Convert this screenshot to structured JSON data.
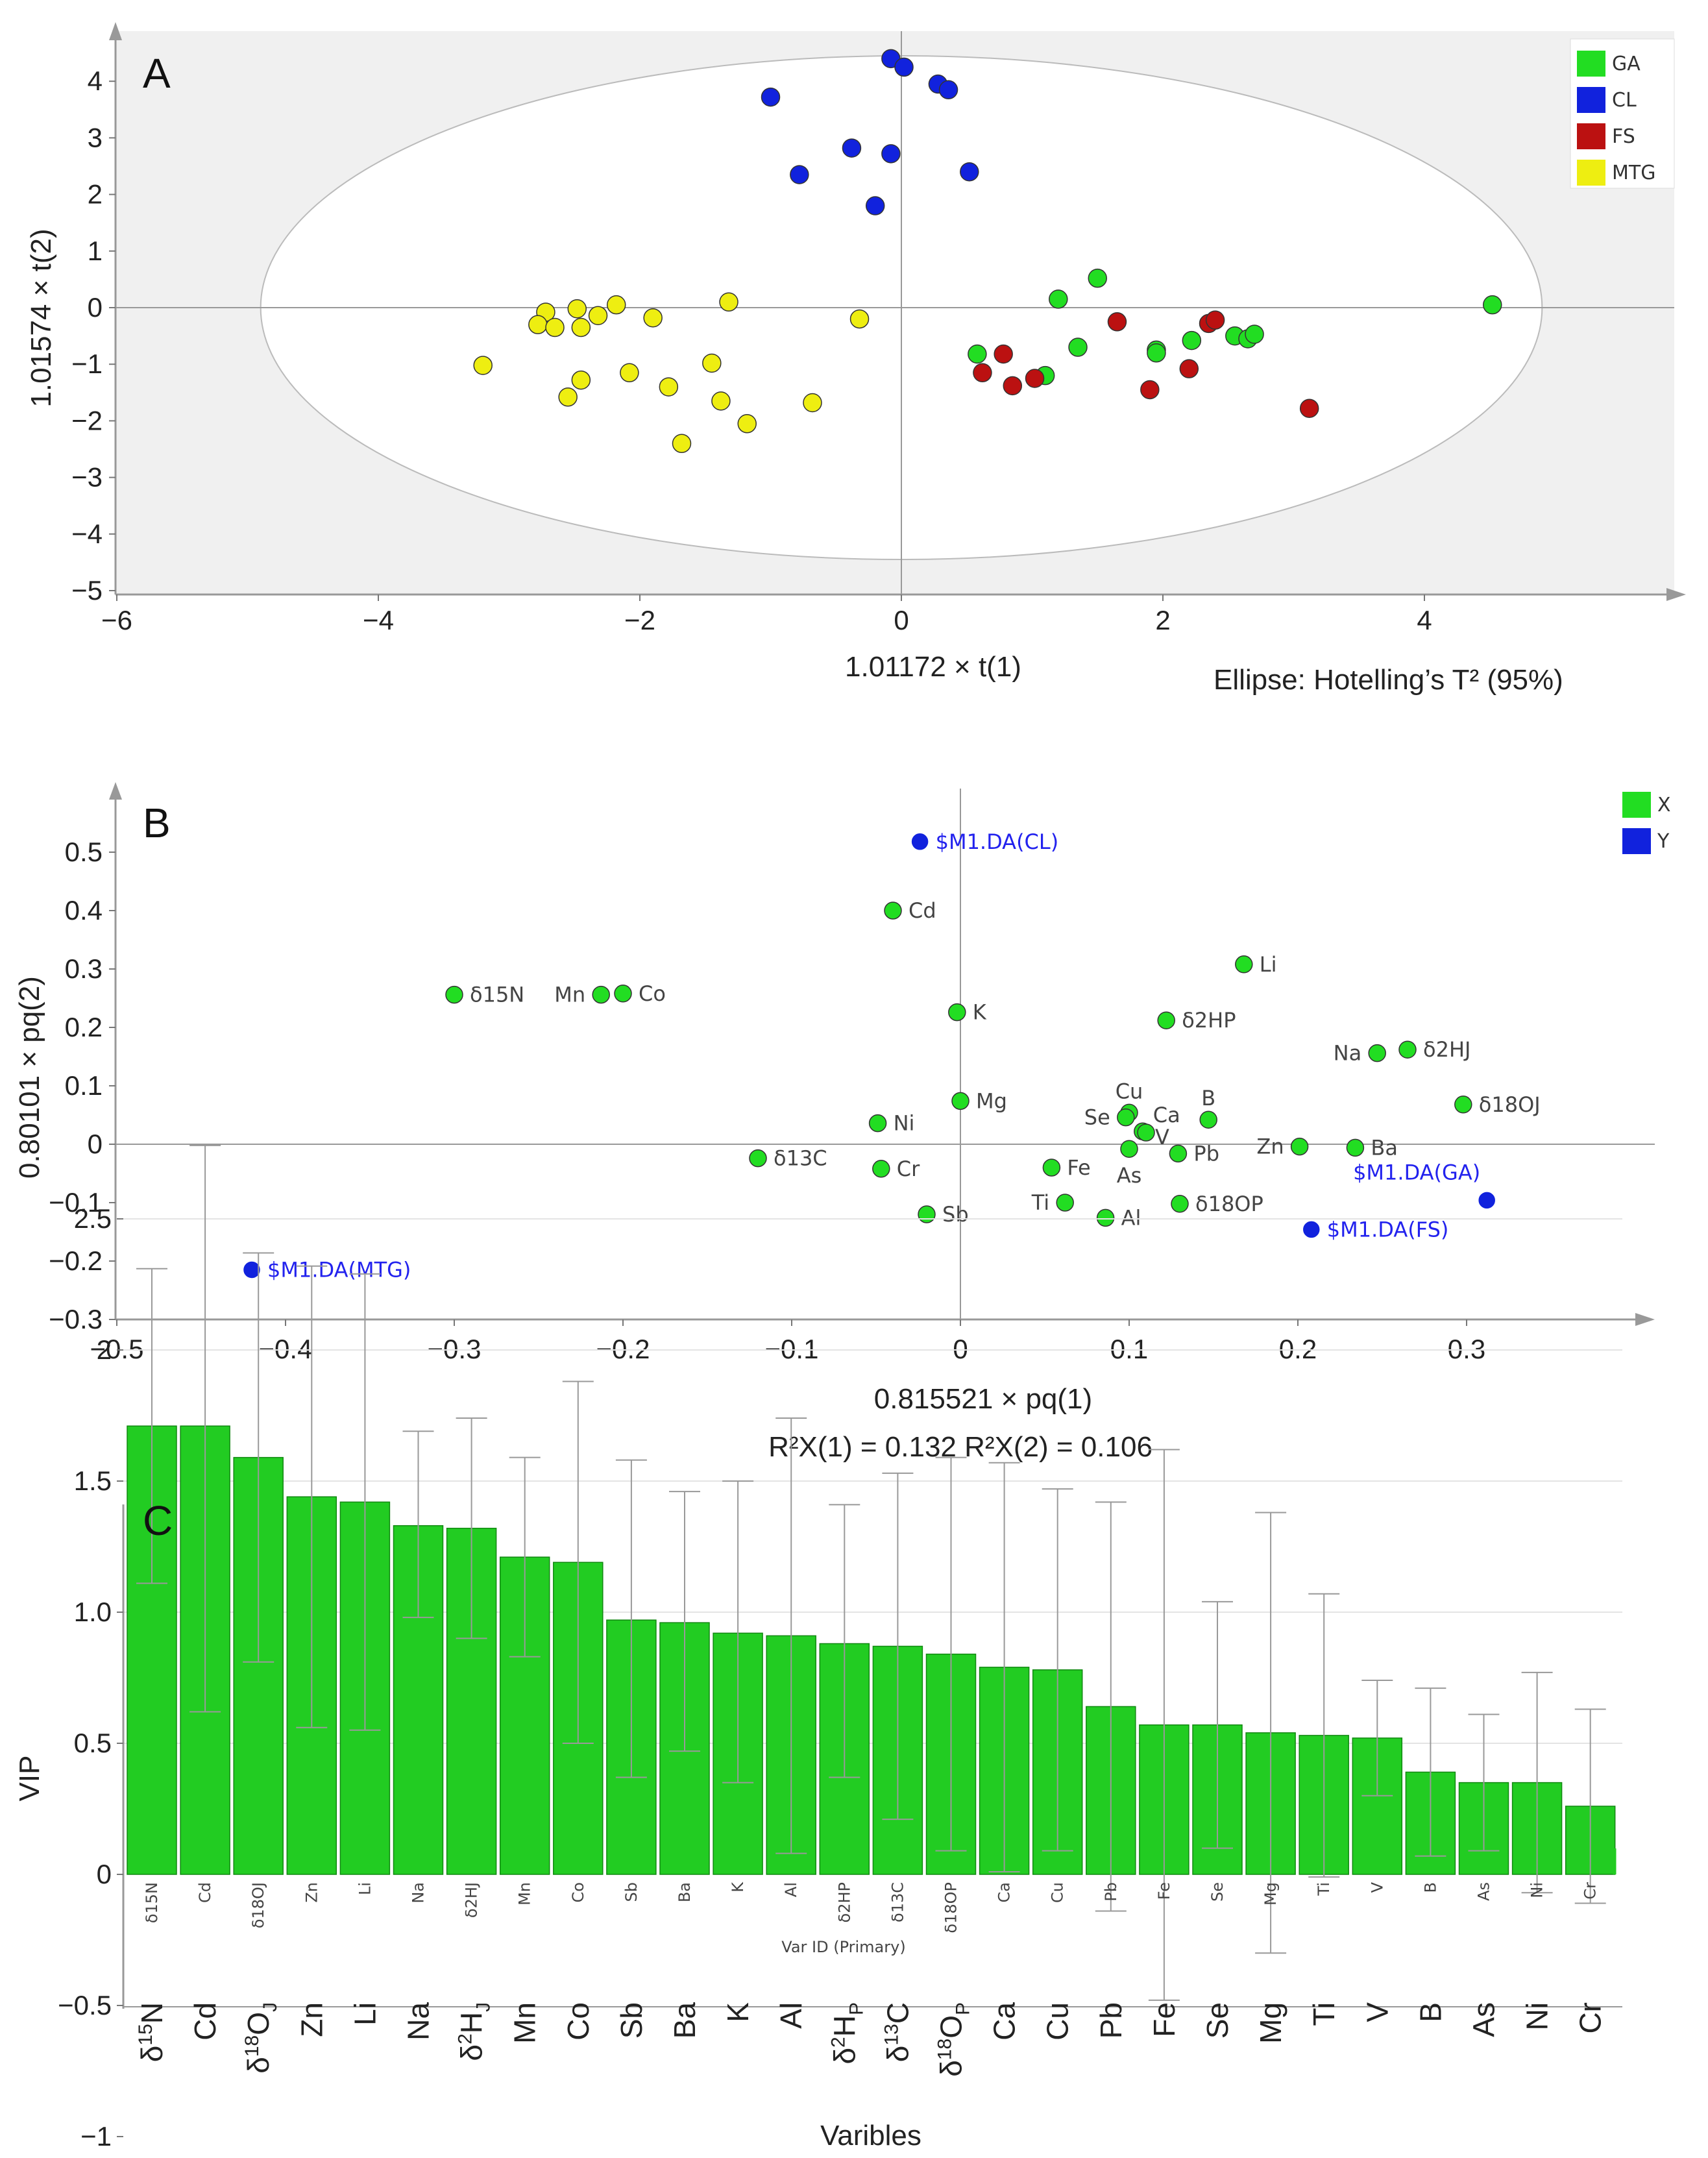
{
  "chart_data": [
    {
      "panel": "A",
      "type": "scatter",
      "xlabel": "1.01172 × t(1)",
      "ylabel": "1.01574 × t(2)",
      "xlim": [
        -6,
        6
      ],
      "ylim": [
        -5,
        4.6
      ],
      "xticks": [
        -6,
        -4,
        -2,
        0,
        2,
        4
      ],
      "yticks": [
        -5,
        -4,
        -3,
        -2,
        -1,
        0,
        1,
        2,
        3,
        4
      ],
      "annotation": "Ellipse: Hotelling’s T² (95%)",
      "ellipse": {
        "cx": 0,
        "cy": 0,
        "rx": 4.9,
        "ry": 4.45
      },
      "legend": [
        {
          "name": "GA",
          "color": "#22dd22"
        },
        {
          "name": "CL",
          "color": "#1122dd"
        },
        {
          "name": "FS",
          "color": "#bb1111"
        },
        {
          "name": "MTG",
          "color": "#eeee11"
        }
      ],
      "series": [
        {
          "name": "GA",
          "color": "#22dd22",
          "points": [
            [
              4.52,
              0.05
            ],
            [
              1.5,
              0.52
            ],
            [
              1.2,
              0.15
            ],
            [
              1.35,
              -0.7
            ],
            [
              1.1,
              -1.2
            ],
            [
              0.58,
              -0.82
            ],
            [
              1.95,
              -0.75
            ],
            [
              2.22,
              -0.58
            ],
            [
              2.55,
              -0.5
            ],
            [
              2.65,
              -0.55
            ],
            [
              2.7,
              -0.47
            ],
            [
              1.95,
              -0.8
            ]
          ]
        },
        {
          "name": "CL",
          "color": "#1122dd",
          "points": [
            [
              -0.08,
              4.4
            ],
            [
              0.02,
              4.25
            ],
            [
              0.28,
              3.95
            ],
            [
              0.36,
              3.85
            ],
            [
              -1.0,
              3.72
            ],
            [
              -0.38,
              2.82
            ],
            [
              -0.08,
              2.72
            ],
            [
              -0.78,
              2.35
            ],
            [
              0.52,
              2.4
            ],
            [
              -0.2,
              1.8
            ]
          ]
        },
        {
          "name": "FS",
          "color": "#bb1111",
          "points": [
            [
              1.65,
              -0.25
            ],
            [
              2.35,
              -0.28
            ],
            [
              2.4,
              -0.22
            ],
            [
              0.78,
              -0.82
            ],
            [
              0.62,
              -1.15
            ],
            [
              1.02,
              -1.25
            ],
            [
              0.85,
              -1.38
            ],
            [
              2.2,
              -1.08
            ],
            [
              1.9,
              -1.45
            ],
            [
              3.12,
              -1.78
            ]
          ]
        },
        {
          "name": "MTG",
          "color": "#eeee11",
          "points": [
            [
              -2.72,
              -0.08
            ],
            [
              -2.48,
              -0.02
            ],
            [
              -2.18,
              0.05
            ],
            [
              -1.32,
              0.1
            ],
            [
              -2.32,
              -0.14
            ],
            [
              -2.78,
              -0.3
            ],
            [
              -2.65,
              -0.35
            ],
            [
              -2.45,
              -0.35
            ],
            [
              -1.9,
              -0.18
            ],
            [
              -0.32,
              -0.2
            ],
            [
              -3.2,
              -1.02
            ],
            [
              -2.08,
              -1.15
            ],
            [
              -1.45,
              -0.98
            ],
            [
              -2.45,
              -1.28
            ],
            [
              -1.78,
              -1.4
            ],
            [
              -2.55,
              -1.58
            ],
            [
              -1.38,
              -1.65
            ],
            [
              -0.68,
              -1.68
            ],
            [
              -1.18,
              -2.05
            ],
            [
              -1.68,
              -2.4
            ]
          ]
        }
      ]
    },
    {
      "panel": "B",
      "type": "scatter",
      "xlabel": "0.815521 × pq(1)",
      "ylabel": "0.80101 × pq(2)",
      "xlim": [
        -0.5,
        0.4
      ],
      "ylim": [
        -0.3,
        0.6
      ],
      "xticks": [
        -0.5,
        -0.4,
        -0.3,
        -0.2,
        -0.1,
        0,
        0.1,
        0.2,
        0.3
      ],
      "yticks": [
        -0.3,
        -0.2,
        -0.1,
        0,
        0.1,
        0.2,
        0.3,
        0.4,
        0.5
      ],
      "annotation": "R²X(1) = 0.132  R²X(2) = 0.106",
      "legend": [
        {
          "name": "X",
          "color": "#22dd22"
        },
        {
          "name": "Y",
          "color": "#1122dd"
        }
      ],
      "series": [
        {
          "name": "X",
          "color": "#22dd22",
          "points": [
            {
              "label": "Cd",
              "x": -0.04,
              "y": 0.4,
              "pos": "right"
            },
            {
              "label": "Li",
              "x": 0.168,
              "y": 0.308,
              "pos": "right"
            },
            {
              "label": "δ15N",
              "x": -0.3,
              "y": 0.256,
              "pos": "right"
            },
            {
              "label": "Mn",
              "x": -0.213,
              "y": 0.256,
              "pos": "left"
            },
            {
              "label": "Co",
              "x": -0.2,
              "y": 0.258,
              "pos": "right"
            },
            {
              "label": "K",
              "x": -0.002,
              "y": 0.226,
              "pos": "right"
            },
            {
              "label": "δ2HP",
              "x": 0.122,
              "y": 0.212,
              "pos": "right"
            },
            {
              "label": "Na",
              "x": 0.247,
              "y": 0.156,
              "pos": "left"
            },
            {
              "label": "δ2HJ",
              "x": 0.265,
              "y": 0.162,
              "pos": "right"
            },
            {
              "label": "Mg",
              "x": 0.0,
              "y": 0.074,
              "pos": "right"
            },
            {
              "label": "δ18OJ",
              "x": 0.298,
              "y": 0.068,
              "pos": "right"
            },
            {
              "label": "Cu",
              "x": 0.1,
              "y": 0.054,
              "pos": "above"
            },
            {
              "label": "Se",
              "x": 0.098,
              "y": 0.046,
              "pos": "left"
            },
            {
              "label": "Ca",
              "x": 0.108,
              "y": 0.022,
              "pos": "aboveright"
            },
            {
              "label": "B",
              "x": 0.147,
              "y": 0.042,
              "pos": "above"
            },
            {
              "label": "Ni",
              "x": -0.049,
              "y": 0.036,
              "pos": "right"
            },
            {
              "label": "V",
              "x": 0.11,
              "y": 0.02,
              "pos": "belowright"
            },
            {
              "label": "Pb",
              "x": 0.129,
              "y": -0.016,
              "pos": "right"
            },
            {
              "label": "Zn",
              "x": 0.201,
              "y": -0.004,
              "pos": "left"
            },
            {
              "label": "Ba",
              "x": 0.234,
              "y": -0.006,
              "pos": "right"
            },
            {
              "label": "As",
              "x": 0.1,
              "y": -0.008,
              "pos": "below"
            },
            {
              "label": "δ13C",
              "x": -0.12,
              "y": -0.024,
              "pos": "right"
            },
            {
              "label": "Cr",
              "x": -0.047,
              "y": -0.042,
              "pos": "right"
            },
            {
              "label": "Fe",
              "x": 0.054,
              "y": -0.04,
              "pos": "right"
            },
            {
              "label": "Ti",
              "x": 0.062,
              "y": -0.1,
              "pos": "left"
            },
            {
              "label": "δ18OP",
              "x": 0.13,
              "y": -0.102,
              "pos": "right"
            },
            {
              "label": "Sb",
              "x": -0.02,
              "y": -0.12,
              "pos": "right"
            },
            {
              "label": "Al",
              "x": 0.086,
              "y": -0.126,
              "pos": "right"
            }
          ]
        },
        {
          "name": "Y",
          "color": "#1122dd",
          "points": [
            {
              "label": "$M1.DA(CL)",
              "x": -0.024,
              "y": 0.518,
              "pos": "right"
            },
            {
              "label": "$M1.DA(GA)",
              "x": 0.312,
              "y": -0.096,
              "pos": "aboveleft"
            },
            {
              "label": "$M1.DA(FS)",
              "x": 0.208,
              "y": -0.146,
              "pos": "right"
            },
            {
              "label": "$M1.DA(MTG)",
              "x": -0.42,
              "y": -0.215,
              "pos": "right"
            }
          ]
        }
      ]
    },
    {
      "panel": "C",
      "type": "bar",
      "ylabel": "VIP",
      "xlabel": "Varibles",
      "inner_xlabel": "Var ID (Primary)",
      "ylim": [
        -1,
        2.9
      ],
      "yticks": [
        -1,
        -0.5,
        0,
        0.5,
        1.0,
        1.5,
        2,
        2.5
      ],
      "ytick_labels": [
        "−1",
        "−0.5",
        "0",
        "0.5",
        "1.0",
        "1.5",
        "2",
        "2.5"
      ],
      "categories": [
        "δ15N",
        "Cd",
        "δ18OJ",
        "Zn",
        "Li",
        "Na",
        "δ2HJ",
        "Mn",
        "Co",
        "Sb",
        "Ba",
        "K",
        "Al",
        "δ2HP",
        "δ13C",
        "δ18OP",
        "Ca",
        "Cu",
        "Pb",
        "Fe",
        "Se",
        "Mg",
        "Ti",
        "V",
        "B",
        "As",
        "Ni",
        "Cr"
      ],
      "display_labels": [
        {
          "base": "δ",
          "sup": "15",
          "main": "N",
          "sub": ""
        },
        {
          "base": "",
          "sup": "",
          "main": "Cd",
          "sub": ""
        },
        {
          "base": "δ",
          "sup": "18",
          "main": "O",
          "sub": "J"
        },
        {
          "base": "",
          "sup": "",
          "main": "Zn",
          "sub": ""
        },
        {
          "base": "",
          "sup": "",
          "main": "Li",
          "sub": ""
        },
        {
          "base": "",
          "sup": "",
          "main": "Na",
          "sub": ""
        },
        {
          "base": "δ",
          "sup": "2",
          "main": "H",
          "sub": "J"
        },
        {
          "base": "",
          "sup": "",
          "main": "Mn",
          "sub": ""
        },
        {
          "base": "",
          "sup": "",
          "main": "Co",
          "sub": ""
        },
        {
          "base": "",
          "sup": "",
          "main": "Sb",
          "sub": ""
        },
        {
          "base": "",
          "sup": "",
          "main": "Ba",
          "sub": ""
        },
        {
          "base": "",
          "sup": "",
          "main": "K",
          "sub": ""
        },
        {
          "base": "",
          "sup": "",
          "main": "Al",
          "sub": ""
        },
        {
          "base": "δ",
          "sup": "2",
          "main": "H",
          "sub": "P"
        },
        {
          "base": "δ",
          "sup": "13",
          "main": "C",
          "sub": ""
        },
        {
          "base": "δ",
          "sup": "18",
          "main": "O",
          "sub": "P"
        },
        {
          "base": "",
          "sup": "",
          "main": "Ca",
          "sub": ""
        },
        {
          "base": "",
          "sup": "",
          "main": "Cu",
          "sub": ""
        },
        {
          "base": "",
          "sup": "",
          "main": "Pb",
          "sub": ""
        },
        {
          "base": "",
          "sup": "",
          "main": "Fe",
          "sub": ""
        },
        {
          "base": "",
          "sup": "",
          "main": "Se",
          "sub": ""
        },
        {
          "base": "",
          "sup": "",
          "main": "Mg",
          "sub": ""
        },
        {
          "base": "",
          "sup": "",
          "main": "Ti",
          "sub": ""
        },
        {
          "base": "",
          "sup": "",
          "main": "V",
          "sub": ""
        },
        {
          "base": "",
          "sup": "",
          "main": "B",
          "sub": ""
        },
        {
          "base": "",
          "sup": "",
          "main": "As",
          "sub": ""
        },
        {
          "base": "",
          "sup": "",
          "main": "Ni",
          "sub": ""
        },
        {
          "base": "",
          "sup": "",
          "main": "Cr",
          "sub": ""
        }
      ],
      "values": [
        1.71,
        1.71,
        1.59,
        1.44,
        1.42,
        1.33,
        1.32,
        1.21,
        1.19,
        0.97,
        0.96,
        0.92,
        0.91,
        0.88,
        0.87,
        0.84,
        0.79,
        0.78,
        0.64,
        0.57,
        0.57,
        0.54,
        0.53,
        0.52,
        0.39,
        0.35,
        0.35,
        0.26
      ],
      "err_high": [
        2.31,
        2.78,
        2.37,
        2.32,
        2.29,
        1.69,
        1.74,
        1.59,
        1.88,
        1.58,
        1.46,
        1.5,
        1.74,
        1.41,
        1.53,
        1.59,
        1.57,
        1.47,
        1.42,
        1.62,
        1.04,
        1.38,
        1.07,
        0.74,
        0.71,
        0.61,
        0.77,
        0.63
      ],
      "err_low": [
        1.11,
        0.62,
        0.81,
        0.56,
        0.55,
        0.98,
        0.9,
        0.83,
        0.5,
        0.37,
        0.47,
        0.35,
        0.08,
        0.37,
        0.21,
        0.09,
        0.01,
        0.09,
        -0.14,
        -0.48,
        0.1,
        -0.3,
        -0.01,
        0.3,
        0.07,
        0.09,
        -0.07,
        -0.11
      ],
      "color": "#22cc22"
    }
  ]
}
